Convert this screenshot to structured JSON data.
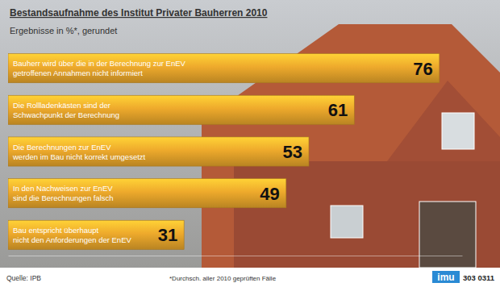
{
  "chart_data": {
    "type": "bar",
    "orientation": "horizontal",
    "title": "Bestandsaufnahme des Institut Privater Bauherren 2010",
    "subtitle": "Ergebnisse in %*, gerundet",
    "categories": [
      "Bauherr wird über die in der Berechnung zur EnEV\ngetroffenen Annahmen nicht informiert",
      "Die Rollladenkästen sind der\nSchwachpunkt der Berechnung",
      "Die Berechnungen zur EnEV\nwerden im Bau nicht korrekt umgesetzt",
      "In den Nachweisen zur EnEV\nsind die Berechnungen falsch",
      "Bau entspricht überhaupt\nnicht den Anforderungen der EnEV"
    ],
    "values": [
      76,
      61,
      53,
      49,
      31
    ],
    "color": "#eeaa2c",
    "xlim": [
      0,
      80
    ],
    "data_labels": true,
    "tick_labels": false,
    "grid": false,
    "annotations": [
      "Quelle: IPB",
      "*Durchsch. aller 2010 geprüften Fälle",
      "imu",
      "303 0311"
    ]
  }
}
